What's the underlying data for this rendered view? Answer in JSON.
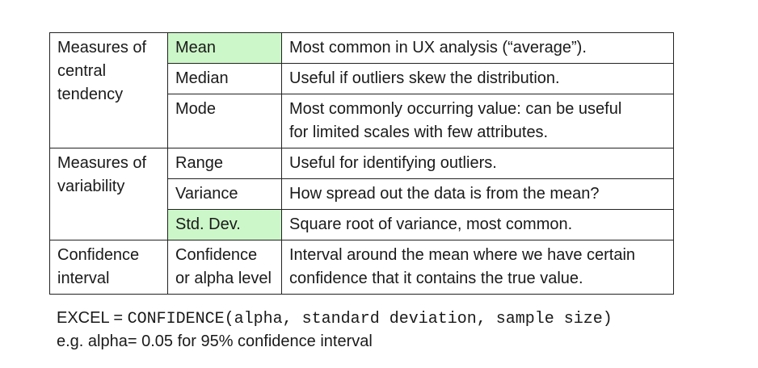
{
  "rows": [
    {
      "category": [
        "Measures of",
        "central",
        "tendency"
      ],
      "measure": "Mean",
      "description": "Most common in UX analysis (“average”)."
    },
    {
      "measure": "Median",
      "description": "Useful if outliers skew the distribution."
    },
    {
      "measure": "Mode",
      "description": [
        "Most commonly occurring value:  can be useful",
        "for limited scales with few attributes."
      ]
    },
    {
      "category": [
        "Measures of",
        "variability"
      ],
      "measure": "Range",
      "description": "Useful for identifying outliers."
    },
    {
      "measure": "Variance",
      "description": "How spread out the data is from the mean?"
    },
    {
      "measure": "Std. Dev.",
      "description": "Square root of variance, most common."
    },
    {
      "category": [
        "Confidence",
        "interval"
      ],
      "measure": [
        "Confidence",
        "or alpha level"
      ],
      "description": [
        "Interval around the mean where we have certain",
        "confidence that it contains the true value."
      ]
    }
  ],
  "highlight_color": "#ccf7c8",
  "footer": {
    "excel_prefix": "EXCEL = ",
    "formula": "CONFIDENCE(alpha, standard deviation, sample size)",
    "example": "e.g. alpha= 0.05 for 95% confidence interval"
  }
}
